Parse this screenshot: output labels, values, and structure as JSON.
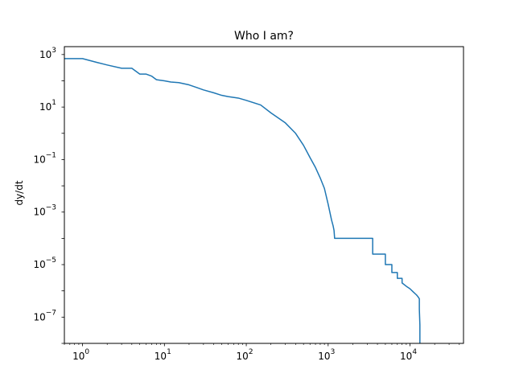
{
  "chart_data": {
    "type": "line",
    "title": "Who I am?",
    "xlabel": "",
    "ylabel": "dy/dt",
    "xscale": "log",
    "yscale": "log",
    "xlim": [
      0.6,
      45000
    ],
    "ylim": [
      1e-08,
      2000
    ],
    "grid": false,
    "line_color": "#1f77b4",
    "x_ticks": [
      {
        "value": 1,
        "base": "10",
        "exp": "0"
      },
      {
        "value": 10,
        "base": "10",
        "exp": "1"
      },
      {
        "value": 100,
        "base": "10",
        "exp": "2"
      },
      {
        "value": 1000,
        "base": "10",
        "exp": "3"
      },
      {
        "value": 10000,
        "base": "10",
        "exp": "4"
      }
    ],
    "y_ticks": [
      {
        "value": 1000,
        "base": "10",
        "exp": "3"
      },
      {
        "value": 10,
        "base": "10",
        "exp": "1"
      },
      {
        "value": 0.1,
        "base": "10",
        "exp": "−1"
      },
      {
        "value": 0.001,
        "base": "10",
        "exp": "−3"
      },
      {
        "value": 1e-05,
        "base": "10",
        "exp": "−5"
      },
      {
        "value": 1e-07,
        "base": "10",
        "exp": "−7"
      }
    ],
    "series": [
      {
        "x": [
          0.6,
          1,
          1.5,
          2,
          3,
          4,
          5,
          6,
          7,
          8,
          10,
          12,
          15,
          20,
          25,
          30,
          40,
          50,
          60,
          80,
          100,
          150,
          200,
          300,
          400,
          500,
          600,
          700,
          800,
          900,
          1000,
          1100,
          1150,
          1180,
          1200,
          1250,
          1250,
          3500,
          3500,
          5000,
          5000,
          6000,
          6000,
          7000,
          7000,
          8000,
          8000,
          9000,
          10000,
          11000,
          12000,
          12500,
          13000,
          13000,
          13200,
          13200
        ],
        "y": [
          700,
          700,
          500,
          400,
          300,
          300,
          180,
          180,
          150,
          110,
          100,
          90,
          85,
          70,
          55,
          45,
          35,
          28,
          25,
          22,
          18,
          12,
          6,
          2.5,
          1,
          0.35,
          0.12,
          0.05,
          0.02,
          0.008,
          0.002,
          0.0005,
          0.0003,
          0.0002,
          0.0001,
          0.0001,
          0.0001,
          0.0001,
          2.5e-05,
          2.5e-05,
          1e-05,
          1e-05,
          5e-06,
          5e-06,
          3e-06,
          3e-06,
          2e-06,
          1.5e-06,
          1.2e-06,
          9e-07,
          7e-07,
          6e-07,
          5e-07,
          2e-07,
          5e-08,
          1e-08
        ]
      }
    ]
  }
}
